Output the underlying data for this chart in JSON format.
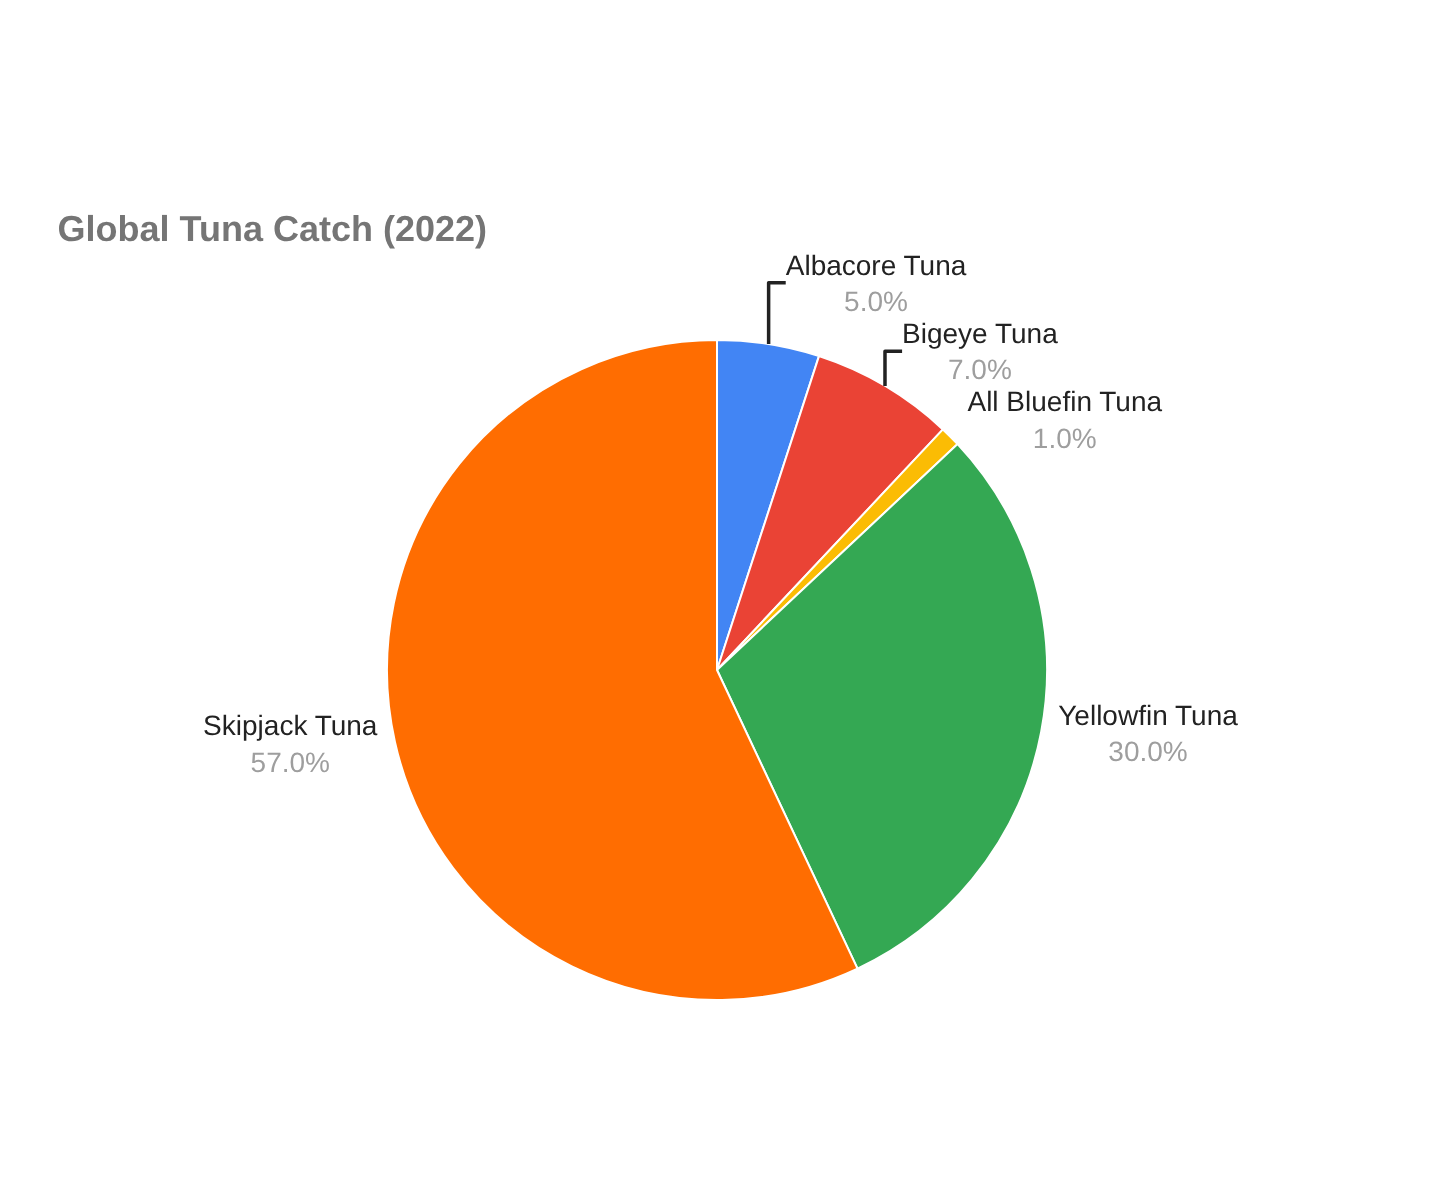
{
  "chart_data": {
    "type": "pie",
    "title": "Global Tuna Catch (2022)",
    "categories": [
      "Albacore Tuna",
      "Bigeye Tuna",
      "All Bluefin Tuna",
      "Yellowfin Tuna",
      "Skipjack Tuna"
    ],
    "values": [
      5,
      7,
      1,
      30,
      57
    ],
    "colors": [
      "#4285f4",
      "#ea4335",
      "#fbbc04",
      "#34a853",
      "#ff6d01"
    ],
    "value_labels": [
      "5.0%",
      "7.0%",
      "1.0%",
      "30.0%",
      "57.0%"
    ],
    "legend": false
  }
}
